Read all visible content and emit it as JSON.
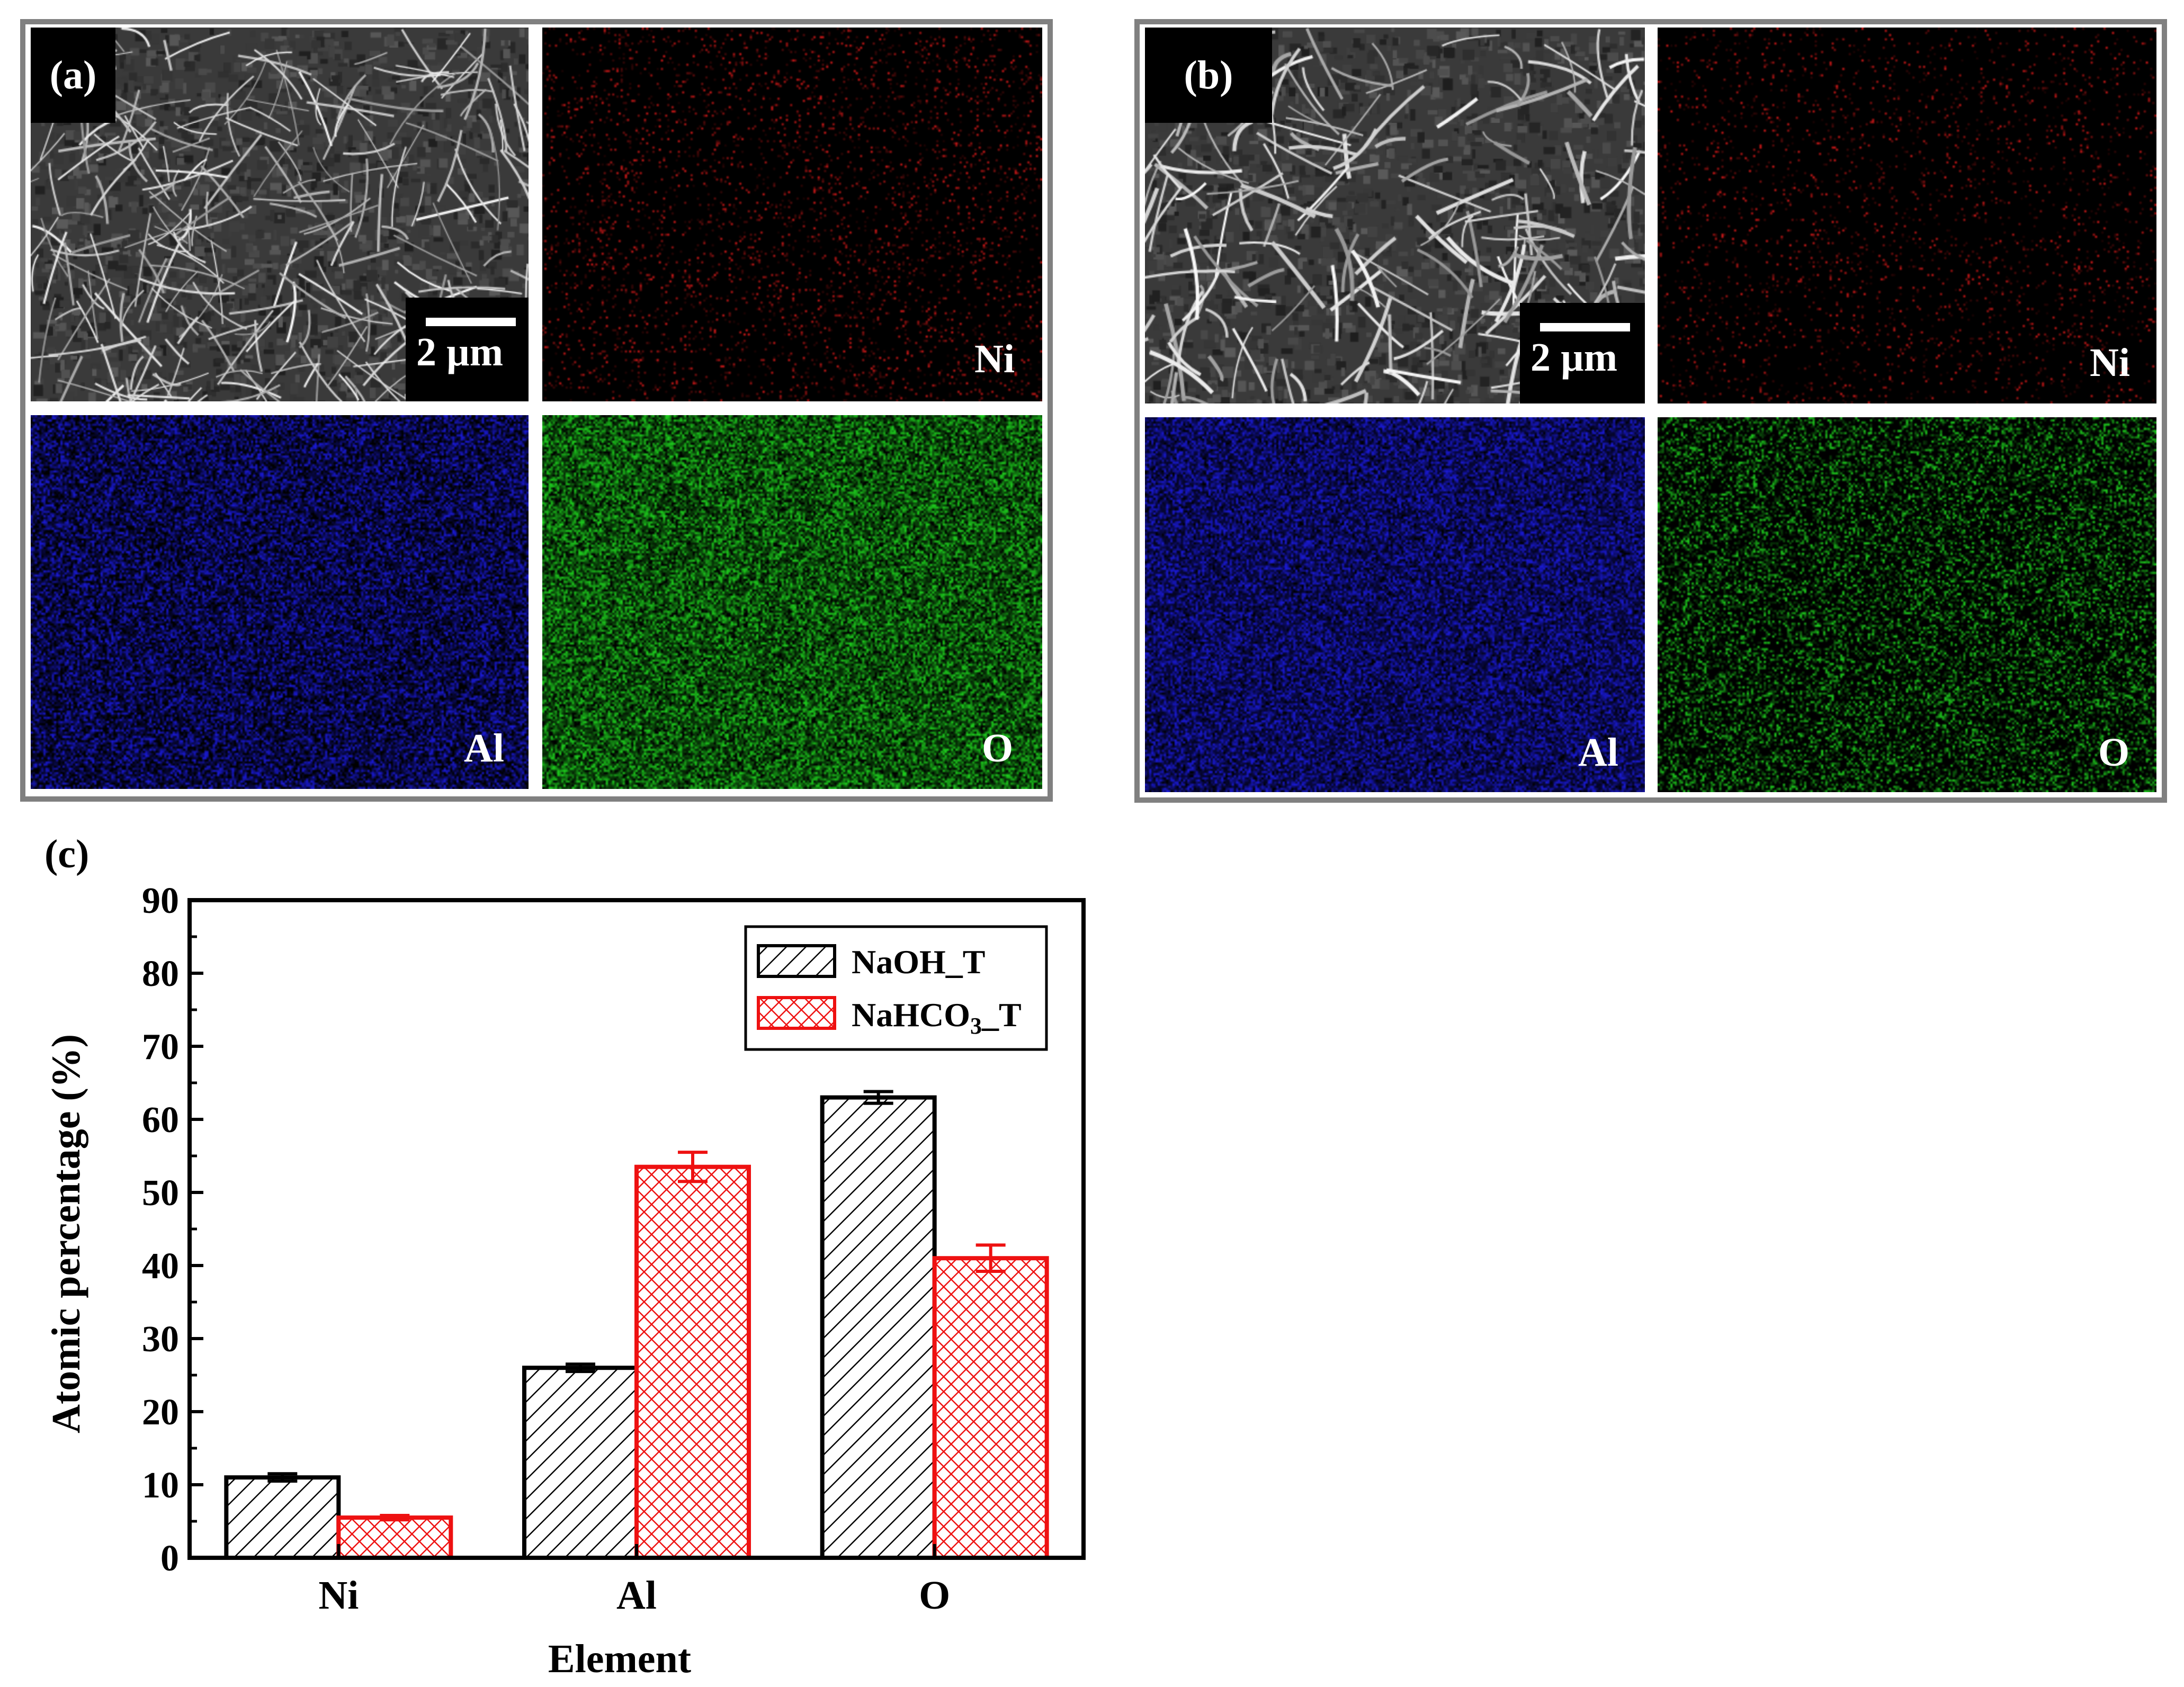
{
  "panels": {
    "a": {
      "letter": "(a)",
      "scale_bar": "2 µm",
      "maps": {
        "ni": "Ni",
        "al": "Al",
        "o": "O"
      }
    },
    "b": {
      "letter": "(b)",
      "scale_bar": "2 µm",
      "maps": {
        "ni": "Ni",
        "al": "Al",
        "o": "O"
      }
    },
    "c": {
      "letter": "(c)"
    }
  },
  "colors": {
    "ni_map": "#d01818",
    "al_map": "#1a1ad8",
    "o_map": "#1ed01e",
    "naoh_bar": "#000000",
    "nahco3_bar": "#ee1111",
    "frame": "#808080"
  },
  "chart_data": {
    "type": "bar",
    "categories": [
      "Ni",
      "Al",
      "O"
    ],
    "series": [
      {
        "name": "NaOH_T",
        "values": [
          11,
          26,
          63
        ],
        "errors": [
          0.5,
          0.5,
          0.8
        ],
        "pattern": "diagonal-hatch",
        "color": "#000000"
      },
      {
        "name": "NaHCO3_T",
        "values": [
          5.5,
          53.5,
          41
        ],
        "errors": [
          0.3,
          2.0,
          1.8
        ],
        "pattern": "crosshatch",
        "color": "#ee1111"
      }
    ],
    "xlabel": "Element",
    "ylabel": "Atomic percentage (%)",
    "ylim": [
      0,
      90
    ],
    "yticks": [
      0,
      10,
      20,
      30,
      40,
      50,
      60,
      70,
      80,
      90
    ],
    "grid": false,
    "legend": "top-right",
    "legend_labels": [
      {
        "text": "NaOH_T"
      },
      {
        "text_main": "NaHCO",
        "text_sub": "3",
        "text_tail": "_T"
      }
    ]
  }
}
